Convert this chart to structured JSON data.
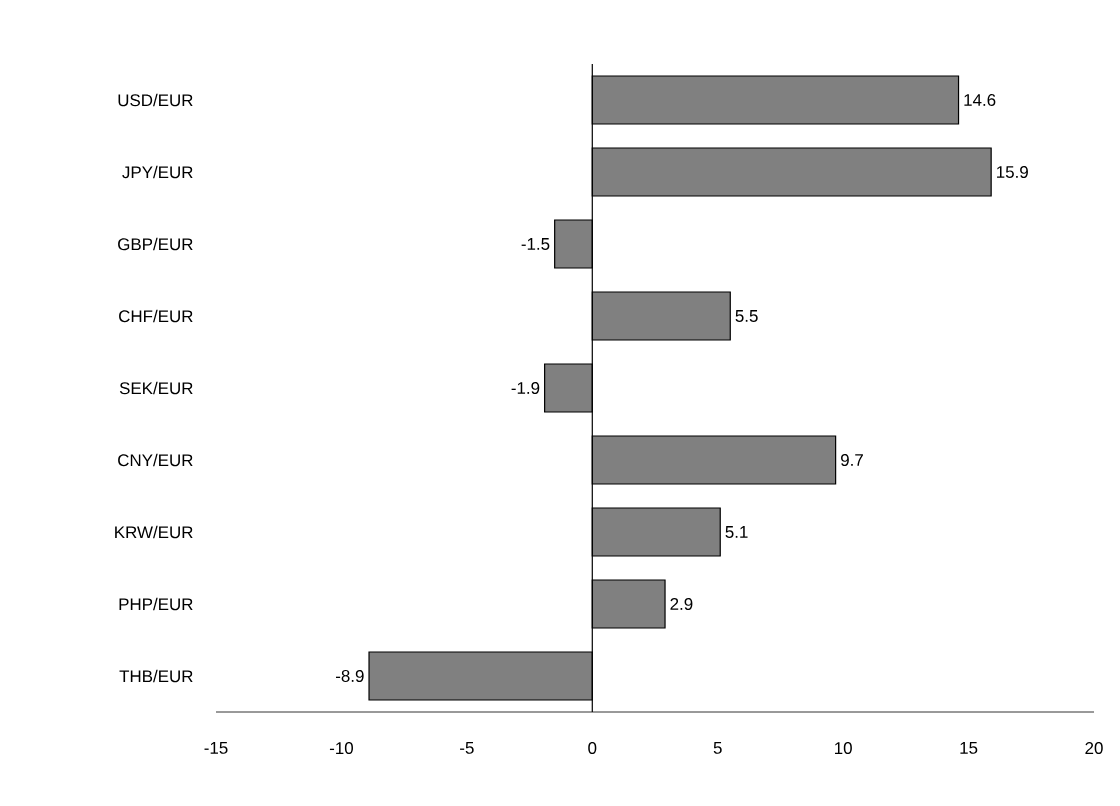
{
  "chart_data": {
    "type": "bar",
    "orientation": "horizontal",
    "categories": [
      "USD/EUR",
      "JPY/EUR",
      "GBP/EUR",
      "CHF/EUR",
      "SEK/EUR",
      "CNY/EUR",
      "KRW/EUR",
      "PHP/EUR",
      "THB/EUR"
    ],
    "values": [
      14.6,
      15.9,
      -1.5,
      5.5,
      -1.9,
      9.7,
      5.1,
      2.9,
      -8.9
    ],
    "color": "#808080",
    "xlim": [
      -15,
      20
    ],
    "xticks": [
      -15,
      -10,
      -5,
      0,
      5,
      10,
      15,
      20
    ],
    "data_labels": true
  }
}
